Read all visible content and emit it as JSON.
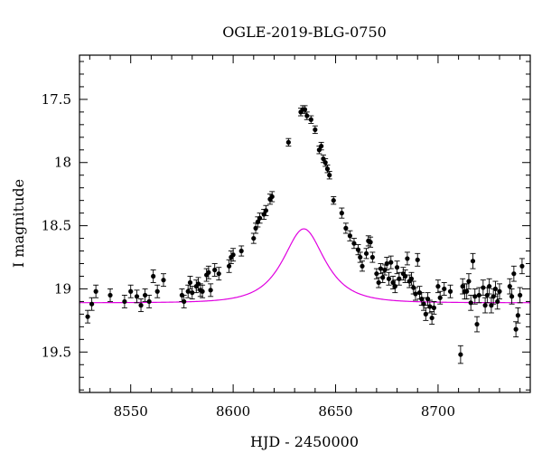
{
  "chart_data": {
    "type": "scatter",
    "title": "OGLE-2019-BLG-0750",
    "xlabel": "HJD - 2450000",
    "ylabel": "I magnitude",
    "xlim": [
      8525,
      8745
    ],
    "ylim": [
      19.82,
      17.15
    ],
    "y_inverted": true,
    "grid": false,
    "colors": {
      "points": "#000000",
      "model": "#e000e0",
      "frame": "#000000"
    },
    "x_ticks": [
      8550,
      8600,
      8650,
      8700
    ],
    "x_tick_labels": [
      "8550",
      "8600",
      "8650",
      "8700"
    ],
    "y_ticks": [
      17.5,
      18,
      18.5,
      19,
      19.5
    ],
    "y_tick_labels": [
      "17.5",
      "18",
      "18.5",
      "19",
      "19.5"
    ],
    "series": [
      {
        "kind": "points",
        "points": [
          [
            8529,
            19.22,
            0.05
          ],
          [
            8531,
            19.12,
            0.05
          ],
          [
            8533,
            19.02,
            0.05
          ],
          [
            8540,
            19.05,
            0.05
          ],
          [
            8547,
            19.1,
            0.05
          ],
          [
            8550,
            19.02,
            0.05
          ],
          [
            8553,
            19.06,
            0.05
          ],
          [
            8555,
            19.13,
            0.05
          ],
          [
            8557,
            19.05,
            0.05
          ],
          [
            8559,
            19.1,
            0.05
          ],
          [
            8561,
            18.9,
            0.05
          ],
          [
            8563,
            19.02,
            0.05
          ],
          [
            8566,
            18.93,
            0.05
          ],
          [
            8575,
            19.05,
            0.05
          ],
          [
            8576,
            19.1,
            0.05
          ],
          [
            8578,
            19.02,
            0.05
          ],
          [
            8579,
            18.95,
            0.05
          ],
          [
            8580,
            19.03,
            0.05
          ],
          [
            8582,
            18.98,
            0.05
          ],
          [
            8583,
            18.96,
            0.05
          ],
          [
            8584,
            19.01,
            0.05
          ],
          [
            8585,
            19.02,
            0.05
          ],
          [
            8587,
            18.89,
            0.05
          ],
          [
            8588,
            18.87,
            0.05
          ],
          [
            8589,
            19.01,
            0.05
          ],
          [
            8591,
            18.85,
            0.05
          ],
          [
            8593,
            18.88,
            0.05
          ],
          [
            8598,
            18.82,
            0.05
          ],
          [
            8599,
            18.75,
            0.05
          ],
          [
            8600,
            18.73,
            0.05
          ],
          [
            8604,
            18.7,
            0.04
          ],
          [
            8610,
            18.6,
            0.04
          ],
          [
            8611,
            18.52,
            0.04
          ],
          [
            8612,
            18.47,
            0.04
          ],
          [
            8613,
            18.44,
            0.04
          ],
          [
            8615,
            18.41,
            0.04
          ],
          [
            8616,
            18.38,
            0.04
          ],
          [
            8618,
            18.29,
            0.04
          ],
          [
            8619,
            18.27,
            0.04
          ],
          [
            8627,
            17.84,
            0.03
          ],
          [
            8633,
            17.6,
            0.03
          ],
          [
            8634,
            17.58,
            0.03
          ],
          [
            8635,
            17.58,
            0.03
          ],
          [
            8636,
            17.63,
            0.03
          ],
          [
            8638,
            17.66,
            0.03
          ],
          [
            8640,
            17.74,
            0.03
          ],
          [
            8642,
            17.9,
            0.03
          ],
          [
            8643,
            17.87,
            0.03
          ],
          [
            8644,
            17.97,
            0.03
          ],
          [
            8645,
            18.0,
            0.03
          ],
          [
            8646,
            18.05,
            0.03
          ],
          [
            8647,
            18.1,
            0.03
          ],
          [
            8649,
            18.3,
            0.03
          ],
          [
            8653,
            18.4,
            0.04
          ],
          [
            8655,
            18.52,
            0.04
          ],
          [
            8657,
            18.58,
            0.04
          ],
          [
            8659,
            18.64,
            0.04
          ],
          [
            8661,
            18.69,
            0.04
          ],
          [
            8662,
            18.75,
            0.04
          ],
          [
            8663,
            18.82,
            0.04
          ],
          [
            8665,
            18.72,
            0.04
          ],
          [
            8666,
            18.62,
            0.04
          ],
          [
            8667,
            18.63,
            0.04
          ],
          [
            8668,
            18.75,
            0.04
          ],
          [
            8670,
            18.88,
            0.04
          ],
          [
            8671,
            18.95,
            0.04
          ],
          [
            8672,
            18.84,
            0.04
          ],
          [
            8673,
            18.91,
            0.04
          ],
          [
            8674,
            18.85,
            0.04
          ],
          [
            8675,
            18.8,
            0.05
          ],
          [
            8676,
            18.92,
            0.05
          ],
          [
            8677,
            18.79,
            0.05
          ],
          [
            8678,
            18.95,
            0.05
          ],
          [
            8679,
            18.98,
            0.05
          ],
          [
            8680,
            18.83,
            0.05
          ],
          [
            8681,
            18.92,
            0.05
          ],
          [
            8683,
            18.88,
            0.05
          ],
          [
            8684,
            18.9,
            0.05
          ],
          [
            8685,
            18.76,
            0.05
          ],
          [
            8686,
            18.94,
            0.05
          ],
          [
            8687,
            18.92,
            0.05
          ],
          [
            8688,
            18.99,
            0.05
          ],
          [
            8689,
            19.04,
            0.05
          ],
          [
            8690,
            18.77,
            0.05
          ],
          [
            8691,
            19.03,
            0.05
          ],
          [
            8692,
            19.08,
            0.05
          ],
          [
            8693,
            19.12,
            0.05
          ],
          [
            8694,
            19.2,
            0.05
          ],
          [
            8695,
            19.08,
            0.05
          ],
          [
            8696,
            19.14,
            0.05
          ],
          [
            8697,
            19.23,
            0.05
          ],
          [
            8698,
            19.15,
            0.05
          ],
          [
            8700,
            18.98,
            0.05
          ],
          [
            8701,
            19.07,
            0.05
          ],
          [
            8703,
            19.0,
            0.05
          ],
          [
            8706,
            19.02,
            0.05
          ],
          [
            8711,
            19.52,
            0.07
          ],
          [
            8712,
            18.98,
            0.06
          ],
          [
            8713,
            19.02,
            0.06
          ],
          [
            8714,
            19.02,
            0.06
          ],
          [
            8715,
            18.94,
            0.06
          ],
          [
            8716,
            19.11,
            0.06
          ],
          [
            8717,
            18.78,
            0.06
          ],
          [
            8718,
            19.06,
            0.06
          ],
          [
            8719,
            19.28,
            0.06
          ],
          [
            8720,
            19.05,
            0.06
          ],
          [
            8722,
            18.99,
            0.06
          ],
          [
            8723,
            19.13,
            0.06
          ],
          [
            8724,
            19.05,
            0.06
          ],
          [
            8725,
            18.98,
            0.06
          ],
          [
            8726,
            19.13,
            0.06
          ],
          [
            8727,
            19.06,
            0.06
          ],
          [
            8728,
            19.0,
            0.06
          ],
          [
            8729,
            19.1,
            0.06
          ],
          [
            8730,
            19.02,
            0.06
          ],
          [
            8735,
            18.98,
            0.06
          ],
          [
            8736,
            19.06,
            0.06
          ],
          [
            8737,
            18.88,
            0.06
          ],
          [
            8738,
            19.32,
            0.06
          ],
          [
            8739,
            19.21,
            0.06
          ],
          [
            8740,
            19.05,
            0.06
          ],
          [
            8741,
            18.82,
            0.06
          ]
        ]
      },
      {
        "kind": "model-curve",
        "model": {
          "baseline_mag": 19.11,
          "t0": 8634.5,
          "u0": 0.68,
          "tE": 15.0
        }
      }
    ]
  }
}
